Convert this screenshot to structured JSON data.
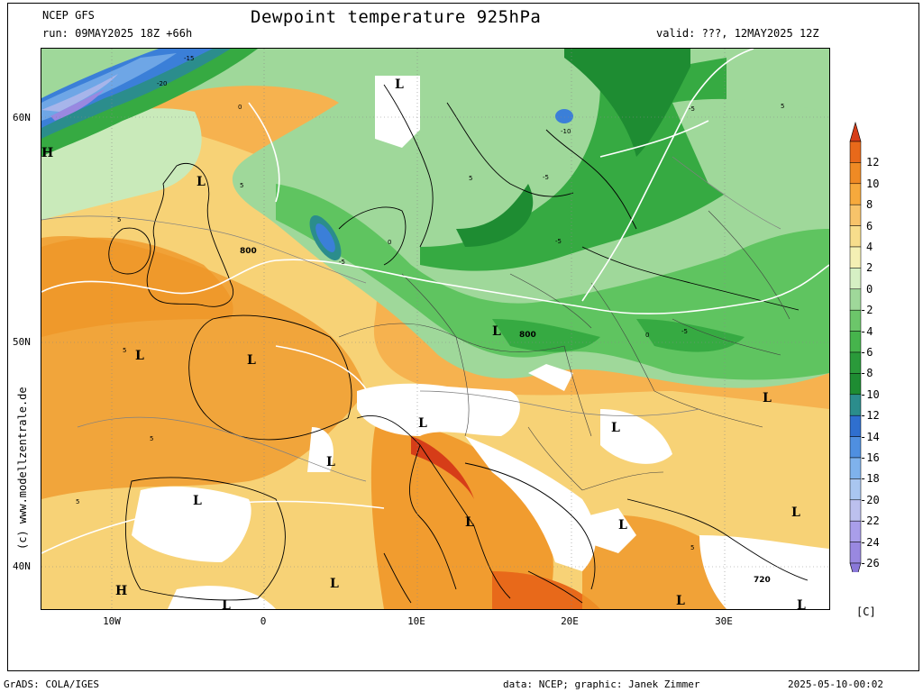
{
  "header": {
    "title": "Dewpoint temperature 925hPa",
    "model": "NCEP GFS",
    "run": "run: 09MAY2025 18Z +66h",
    "valid": "valid: ???, 12MAY2025 12Z"
  },
  "map": {
    "lat_ticks": [
      "60N",
      "50N",
      "40N"
    ],
    "lon_ticks": [
      "10W",
      "0",
      "10E",
      "20E",
      "30E"
    ],
    "copyright": "(c) www.modellzentrale.de",
    "pressure_labels": [
      "H",
      "L",
      "800",
      "720"
    ],
    "contour_labels": [
      "-20",
      "-15",
      "-10",
      "-5",
      "0",
      "5"
    ],
    "colors": {
      "white": "#ffffff",
      "yellow_light": "#fcebae",
      "yellow": "#f7d57a",
      "orange_light": "#f6b24f",
      "orange": "#ef9628",
      "orange_dark": "#e8691a",
      "red": "#d63d18",
      "green_pale": "#c9eaba",
      "green_light": "#9fd89a",
      "green": "#5fc460",
      "green_mid": "#36aa42",
      "green_dark": "#1e8c32",
      "teal": "#2b8d8c",
      "blue": "#3b7fd8",
      "blue_light": "#6ea6e6",
      "lavender": "#a7b5ea",
      "purple": "#9988e0"
    }
  },
  "colorbar": {
    "unit": "[C]",
    "levels": [
      "12",
      "10",
      "8",
      "6",
      "4",
      "2",
      "0",
      "-2",
      "-4",
      "-6",
      "-8",
      "-10",
      "-12",
      "-14",
      "-16",
      "-18",
      "-20",
      "-22",
      "-24",
      "-26"
    ],
    "colors": [
      "#e8691a",
      "#ef8a24",
      "#f6a93c",
      "#f7c36a",
      "#f7dd8c",
      "#f4f0b4",
      "#d6f0c4",
      "#9fd89a",
      "#6cc66a",
      "#46b44c",
      "#2a9a3a",
      "#1e8c32",
      "#2b8d8c",
      "#2f6fcf",
      "#4f8fe0",
      "#7fb2ec",
      "#a9c6f0",
      "#bcc0ee",
      "#a99eea",
      "#9988e0"
    ],
    "top_color": "#d63d18",
    "bottom_color": "#8a78d8"
  },
  "footer": {
    "left": "GrADS: COLA/IGES",
    "mid": "data: NCEP; graphic: Janek Zimmer",
    "right": "2025-05-10-00:02"
  }
}
